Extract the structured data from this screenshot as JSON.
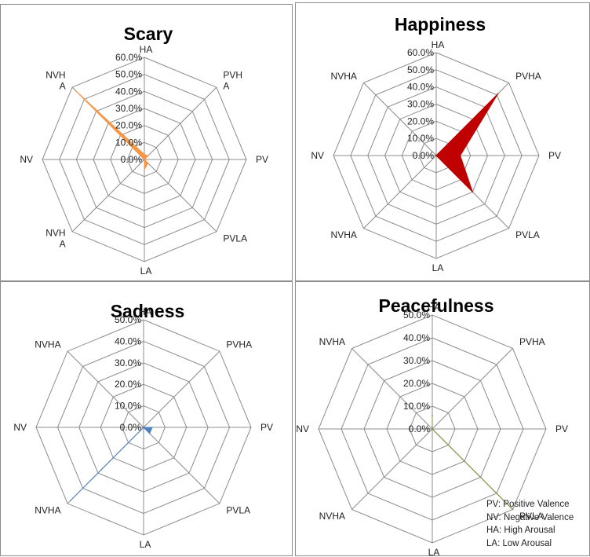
{
  "chart_data": [
    {
      "type": "radar",
      "title": "Scary",
      "color": "#F79646",
      "axes": [
        "HA",
        "PVH\nA",
        "PV",
        "PVLA",
        "LA",
        "NVH\nA",
        "NV",
        "NVH\nA"
      ],
      "ticks": [
        "0.0%",
        "10.0%",
        "20.0%",
        "30.0%",
        "40.0%",
        "50.0%",
        "60.0%"
      ],
      "rmax": 60,
      "values": [
        3,
        3,
        0,
        3,
        6,
        0,
        0,
        57
      ]
    },
    {
      "type": "radar",
      "title": "Happiness",
      "color": "#C00000",
      "axes": [
        "HA",
        "PVHA",
        "PV",
        "PVLA",
        "LA",
        "NVHA",
        "NV",
        "NVHA"
      ],
      "ticks": [
        "0.0%",
        "10.0%",
        "20.0%",
        "30.0%",
        "40.0%",
        "50.0%",
        "60.0%"
      ],
      "rmax": 60,
      "values": [
        0,
        51,
        14,
        30,
        0,
        0,
        0,
        0
      ]
    },
    {
      "type": "radar",
      "title": "Sadness",
      "color": "#4F81BD",
      "axes": [
        "HA",
        "PVHA",
        "PV",
        "PVLA",
        "LA",
        "NVHA",
        "NV",
        "NVHA"
      ],
      "ticks": [
        "0.0%",
        "10.0%",
        "20.0%",
        "30.0%",
        "40.0%",
        "50.0%"
      ],
      "rmax": 50,
      "values": [
        0,
        0,
        4,
        4,
        0,
        48,
        0,
        0
      ]
    },
    {
      "type": "radar",
      "title": "Peacefulness",
      "color": "#77933C",
      "axes": [
        "HA",
        "PVHA",
        "PV",
        "PVLA",
        "LA",
        "NVHA",
        "NV",
        "NVHA"
      ],
      "ticks": [
        "0.0%",
        "10.0%",
        "20.0%",
        "30.0%",
        "40.0%",
        "50.0%"
      ],
      "rmax": 50,
      "values": [
        6,
        0,
        0,
        50,
        0,
        0,
        0,
        0
      ]
    }
  ],
  "notes": [
    "PV: Positive Valence",
    "NV: Negative Valence",
    "HA: High Arousal",
    "LA: Low Arousal"
  ]
}
